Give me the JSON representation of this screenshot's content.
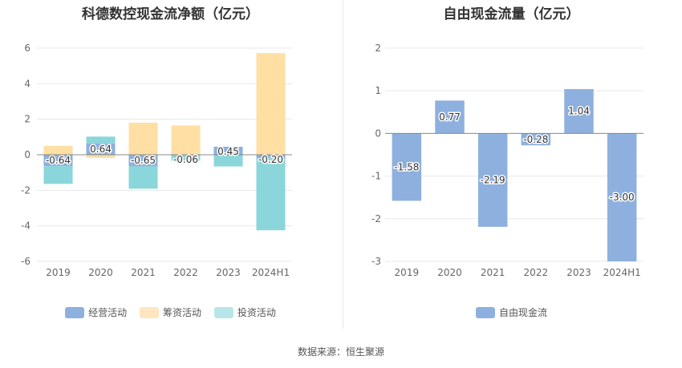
{
  "chart_data": [
    {
      "type": "bar",
      "title": "科德数控现金流净额（亿元）",
      "categories": [
        "2019",
        "2020",
        "2021",
        "2022",
        "2023",
        "2024H1"
      ],
      "stacked": true,
      "series": [
        {
          "name": "经营活动",
          "color": "#8eb0de",
          "values": [
            -0.64,
            0.64,
            -0.65,
            -0.06,
            0.45,
            -0.2
          ]
        },
        {
          "name": "筹资活动",
          "color": "#ffdfa3",
          "values": [
            0.5,
            -0.18,
            1.8,
            1.65,
            0.0,
            5.72
          ]
        },
        {
          "name": "投资活动",
          "color": "#8ad6da",
          "values": [
            -1.0,
            0.38,
            -1.26,
            -0.28,
            -0.66,
            -4.05
          ]
        }
      ],
      "data_labels": [
        "-0.64",
        "0.64",
        "-0.65",
        "-0.06",
        "0.45",
        "-0.20"
      ],
      "ylim": [
        -6,
        6
      ],
      "yticks": [
        6,
        4,
        2,
        0,
        -2,
        -4,
        -6
      ],
      "grid": true,
      "legend": "bottom",
      "legend_colors": [
        "#8eb0de",
        "#ffe5c0",
        "#b8e6e8"
      ]
    },
    {
      "type": "bar",
      "title": "自由现金流量（亿元）",
      "categories": [
        "2019",
        "2020",
        "2021",
        "2022",
        "2023",
        "2024H1"
      ],
      "series": [
        {
          "name": "自由现金流",
          "color": "#8eb0de",
          "values": [
            -1.58,
            0.77,
            -2.19,
            -0.28,
            1.04,
            -3.0
          ]
        }
      ],
      "data_labels": [
        "-1.58",
        "0.77",
        "-2.19",
        "-0.28",
        "1.04",
        "-3.00"
      ],
      "ylim": [
        -3,
        2
      ],
      "yticks": [
        2,
        1,
        0,
        -1,
        -2,
        -3
      ],
      "grid": true,
      "legend": "bottom",
      "legend_colors": [
        "#8eb0de"
      ]
    }
  ],
  "source": "数据来源：恒生聚源"
}
